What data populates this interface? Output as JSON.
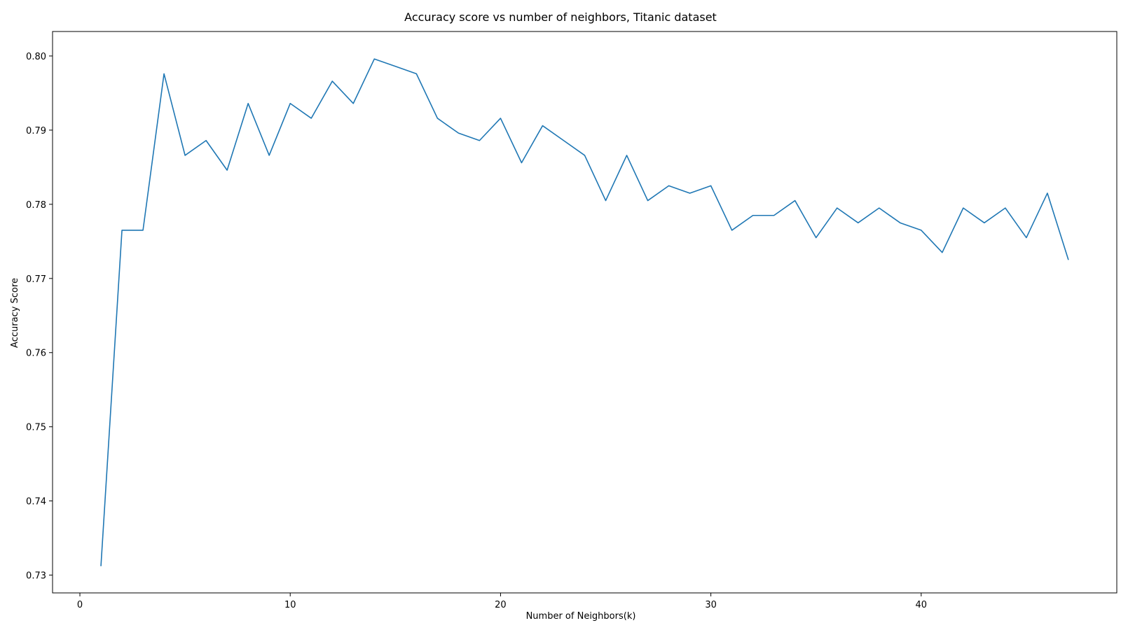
{
  "chart_data": {
    "type": "line",
    "title": "Accuracy score vs number of neighbors, Titanic dataset",
    "xlabel": "Number of Neighbors(k)",
    "ylabel": "Accuracy Score",
    "xlim": [
      -1.3,
      49.3
    ],
    "ylim": [
      0.7276,
      0.8033
    ],
    "xticks": [
      0,
      10,
      20,
      30,
      40
    ],
    "xtick_labels": [
      "0",
      "10",
      "20",
      "30",
      "40"
    ],
    "yticks": [
      0.73,
      0.74,
      0.75,
      0.76,
      0.77,
      0.78,
      0.79,
      0.8
    ],
    "ytick_labels": [
      "0.73",
      "0.74",
      "0.75",
      "0.76",
      "0.77",
      "0.78",
      "0.79",
      "0.80"
    ],
    "grid": false,
    "series": [
      {
        "color": "#1f77b4",
        "x": [
          1,
          2,
          3,
          4,
          5,
          6,
          7,
          8,
          9,
          10,
          11,
          12,
          13,
          14,
          15,
          16,
          17,
          18,
          19,
          20,
          21,
          22,
          23,
          24,
          25,
          26,
          27,
          28,
          29,
          30,
          31,
          32,
          33,
          34,
          35,
          36,
          37,
          38,
          39,
          40,
          41,
          42,
          43,
          44,
          45,
          46,
          47
        ],
        "y": [
          0.7312,
          0.7765,
          0.7765,
          0.7976,
          0.7866,
          0.7886,
          0.7846,
          0.7936,
          0.7866,
          0.7936,
          0.7916,
          0.7966,
          0.7936,
          0.7996,
          0.7986,
          0.7976,
          0.7916,
          0.7896,
          0.7886,
          0.7916,
          0.7856,
          0.7906,
          0.7886,
          0.7866,
          0.7805,
          0.7866,
          0.7805,
          0.7825,
          0.7815,
          0.7825,
          0.7765,
          0.7785,
          0.7785,
          0.7805,
          0.7755,
          0.7795,
          0.7775,
          0.7795,
          0.7775,
          0.7765,
          0.7735,
          0.7795,
          0.7775,
          0.7795,
          0.7755,
          0.7815,
          0.7725
        ]
      }
    ]
  }
}
